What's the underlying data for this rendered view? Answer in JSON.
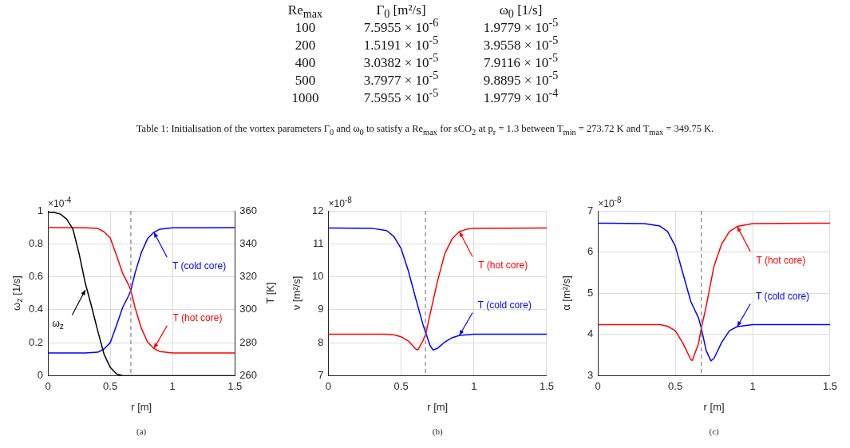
{
  "chart_data": [
    {
      "type": "other",
      "annotations": [
        "Re$_{max}$",
        "Γ$_{0}$ [m²/s]",
        "ω$_{0}$ [1/s]",
        "100",
        "7.5955 × 10$^{-6}$",
        "1.9779 × 10$^{-5}$",
        "200",
        "1.5191 × 10$^{-5}$",
        "3.9558 × 10$^{-5}$",
        "400",
        "3.0382 × 10$^{-5}$",
        "7.9116 × 10$^{-5}$",
        "500",
        "3.7977 × 10$^{-5}$",
        "9.8895 × 10$^{-5}$",
        "1000",
        "7.5955 × 10$^{-5}$",
        "1.9779 × 10$^{-4}$",
        "Table 1: Initialisation of the vortex parameters Γ$_{0}$ and ω$_{0}$ to satisfy a Re$_{max}$ for sCO$_{2}$ at p$_{r}$ = 1.3 between T$_{min}$ = 273.72 K and T$_{max}$ = 349.75 K."
      ]
    },
    {
      "type": "line",
      "xlabel": "r [m]",
      "ylabel": "ω$_{z}$ [1/s]",
      "y2label": "T [K]",
      "xlim": [
        0,
        1.5
      ],
      "xticks": [
        0,
        0.5,
        1,
        1.5
      ],
      "ylim": [
        0,
        1
      ],
      "yticks": [
        0,
        0.2,
        0.4,
        0.6,
        0.8,
        1
      ],
      "y2lim": [
        260,
        360
      ],
      "y2ticks": [
        260,
        280,
        300,
        320,
        340,
        360
      ],
      "grid": true,
      "legend": false,
      "marker": "none",
      "line_style": "solid",
      "series": [
        {
          "color": "#000000",
          "x": [
            0,
            0.05,
            0.1,
            0.15,
            0.2,
            0.25,
            0.3,
            0.35,
            0.4,
            0.45,
            0.5,
            0.55,
            0.6,
            0.7,
            1.5
          ],
          "values": [
            0.99,
            0.99,
            0.98,
            0.95,
            0.89,
            0.74,
            0.56,
            0.42,
            0.27,
            0.13,
            0.05,
            0.01,
            0,
            0,
            0
          ]
        },
        {
          "color": "#ff0000",
          "axis": "y2",
          "x": [
            0,
            0.3,
            0.4,
            0.45,
            0.5,
            0.55,
            0.6,
            0.65,
            0.665,
            0.7,
            0.75,
            0.8,
            0.85,
            0.9,
            1.0,
            1.5
          ],
          "values": [
            349.8,
            349.7,
            349.3,
            347.3,
            343.5,
            333,
            322,
            314.6,
            311.7,
            301,
            288.7,
            280.3,
            276.5,
            274.6,
            273.8,
            273.7
          ]
        },
        {
          "color": "#0000ff",
          "axis": "y2",
          "x": [
            0,
            0.3,
            0.4,
            0.45,
            0.5,
            0.55,
            0.6,
            0.65,
            0.665,
            0.7,
            0.75,
            0.8,
            0.85,
            0.9,
            1.0,
            1.5
          ],
          "values": [
            273.7,
            273.8,
            274.2,
            276.2,
            280,
            290.5,
            301.5,
            308.9,
            311.7,
            322.5,
            334.8,
            343.2,
            347,
            348.9,
            349.7,
            349.8
          ]
        }
      ],
      "ref_lines": [
        {
          "axis": "x",
          "value": 0.665,
          "color": "#808080",
          "line_style": "dashed"
        }
      ],
      "annotations": [
        "×10$^{-4}$",
        "(a)",
        {
          "text": "T (cold core)",
          "x": 0.85,
          "y": 0.87
        },
        {
          "text": "T (hot core)",
          "x": 0.85,
          "y": 0.165
        },
        {
          "text": "ω$_{z}$",
          "x": 0.3,
          "y": 0.52
        }
      ]
    },
    {
      "type": "line",
      "xlabel": "r [m]",
      "ylabel": "ν [m²/s]",
      "xlim": [
        0,
        1.5
      ],
      "xticks": [
        0,
        0.5,
        1,
        1.5
      ],
      "ylim": [
        7,
        12
      ],
      "yticks": [
        7,
        8,
        9,
        10,
        11,
        12
      ],
      "grid": true,
      "legend": false,
      "marker": "none",
      "line_style": "solid",
      "series": [
        {
          "color": "#0000ff",
          "x": [
            0,
            0.3,
            0.4,
            0.45,
            0.5,
            0.55,
            0.6,
            0.65,
            0.67,
            0.7,
            0.72,
            0.75,
            0.8,
            0.85,
            0.9,
            1.0,
            1.5
          ],
          "values": [
            11.48,
            11.47,
            11.4,
            11.22,
            10.85,
            10.17,
            9.34,
            8.55,
            8.28,
            7.9,
            7.78,
            7.83,
            8.02,
            8.15,
            8.22,
            8.26,
            8.26
          ]
        },
        {
          "color": "#ff0000",
          "x": [
            0,
            0.4,
            0.45,
            0.5,
            0.55,
            0.6,
            0.615,
            0.65,
            0.67,
            0.7,
            0.75,
            0.8,
            0.85,
            0.9,
            0.95,
            1.0,
            1.5
          ],
          "values": [
            8.26,
            8.26,
            8.24,
            8.18,
            8.05,
            7.81,
            7.78,
            8.06,
            8.28,
            8.89,
            9.87,
            10.7,
            11.15,
            11.37,
            11.44,
            11.47,
            11.48
          ]
        }
      ],
      "ref_lines": [
        {
          "axis": "x",
          "value": 0.667,
          "color": "#808080",
          "line_style": "dashed"
        }
      ],
      "annotations": [
        "×10$^{-8}$",
        "(b)",
        {
          "text": "T (hot core)",
          "x": 0.9,
          "y": 11.37
        },
        {
          "text": "T (cold core)",
          "x": 0.9,
          "y": 8.22
        }
      ]
    },
    {
      "type": "line",
      "xlabel": "r [m]",
      "ylabel": "α [m²/s]",
      "xlim": [
        0,
        1.5
      ],
      "xticks": [
        0,
        0.5,
        1,
        1.5
      ],
      "ylim": [
        3,
        7
      ],
      "yticks": [
        3,
        4,
        5,
        6,
        7
      ],
      "grid": true,
      "legend": false,
      "marker": "none",
      "line_style": "solid",
      "series": [
        {
          "color": "#0000ff",
          "x": [
            0,
            0.3,
            0.4,
            0.45,
            0.5,
            0.55,
            0.6,
            0.65,
            0.668,
            0.7,
            0.73,
            0.75,
            0.8,
            0.85,
            0.9,
            1.0,
            1.5
          ],
          "values": [
            6.7,
            6.69,
            6.63,
            6.5,
            6.14,
            5.47,
            4.8,
            4.4,
            4.15,
            3.6,
            3.36,
            3.42,
            3.81,
            4.09,
            4.19,
            4.24,
            4.24
          ]
        },
        {
          "color": "#ff0000",
          "x": [
            0,
            0.4,
            0.45,
            0.5,
            0.55,
            0.6,
            0.61,
            0.65,
            0.668,
            0.7,
            0.75,
            0.8,
            0.85,
            0.9,
            1.0,
            1.5
          ],
          "values": [
            4.24,
            4.24,
            4.2,
            4.09,
            3.78,
            3.39,
            3.37,
            3.78,
            4.15,
            4.69,
            5.66,
            6.2,
            6.5,
            6.62,
            6.69,
            6.7
          ]
        }
      ],
      "ref_lines": [
        {
          "axis": "x",
          "value": 0.668,
          "color": "#808080",
          "line_style": "dashed"
        }
      ],
      "annotations": [
        "×10$^{-8}$",
        "(c)",
        {
          "text": "T (hot core)",
          "x": 0.9,
          "y": 6.62
        },
        {
          "text": "T (cold core)",
          "x": 0.9,
          "y": 4.19
        }
      ]
    }
  ]
}
